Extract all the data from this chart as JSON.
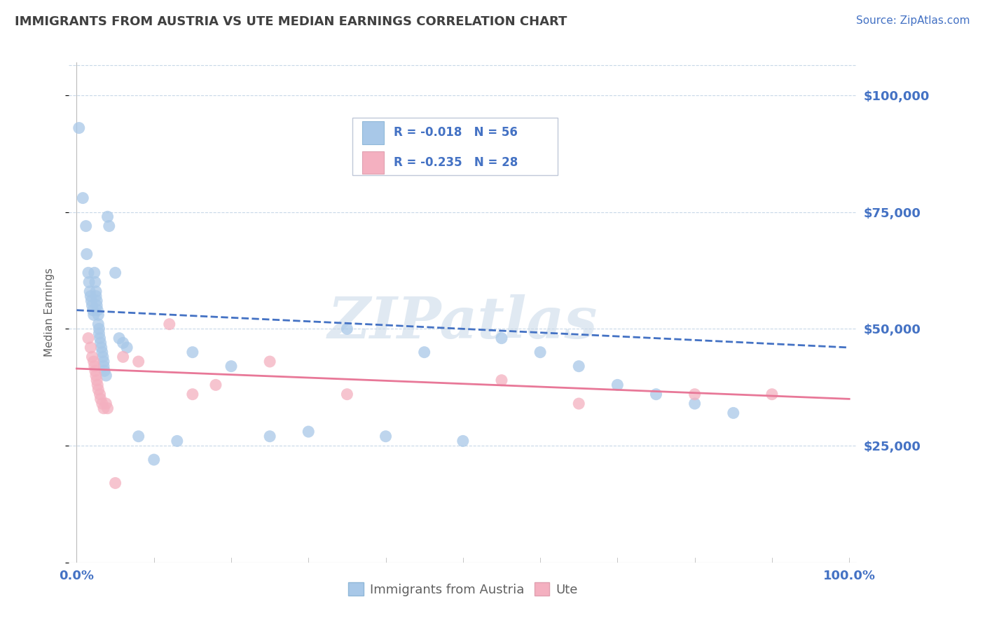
{
  "title": "IMMIGRANTS FROM AUSTRIA VS UTE MEDIAN EARNINGS CORRELATION CHART",
  "source_text": "Source: ZipAtlas.com",
  "ylabel": "Median Earnings",
  "watermark": "ZIPatlas",
  "yticks": [
    0,
    25000,
    50000,
    75000,
    100000
  ],
  "ytick_labels": [
    "",
    "$25,000",
    "$50,000",
    "$75,000",
    "$100,000"
  ],
  "ymin": 0,
  "ymax": 107000,
  "xmin": -0.01,
  "xmax": 1.01,
  "xtick_labels": [
    "0.0%",
    "100.0%"
  ],
  "xticks": [
    0.0,
    1.0
  ],
  "blue_scatter_x": [
    0.003,
    0.008,
    0.012,
    0.013,
    0.015,
    0.016,
    0.017,
    0.018,
    0.019,
    0.02,
    0.021,
    0.022,
    0.023,
    0.024,
    0.025,
    0.025,
    0.026,
    0.026,
    0.027,
    0.028,
    0.028,
    0.029,
    0.029,
    0.03,
    0.031,
    0.032,
    0.033,
    0.034,
    0.035,
    0.035,
    0.036,
    0.038,
    0.04,
    0.042,
    0.05,
    0.055,
    0.06,
    0.065,
    0.08,
    0.1,
    0.13,
    0.15,
    0.2,
    0.25,
    0.3,
    0.35,
    0.4,
    0.45,
    0.5,
    0.55,
    0.6,
    0.65,
    0.7,
    0.75,
    0.8,
    0.85
  ],
  "blue_scatter_y": [
    93000,
    78000,
    72000,
    66000,
    62000,
    60000,
    58000,
    57000,
    56000,
    55000,
    54000,
    53000,
    62000,
    60000,
    58000,
    57000,
    56000,
    55000,
    54000,
    53000,
    51000,
    50000,
    49000,
    48000,
    47000,
    46000,
    45000,
    44000,
    43000,
    42000,
    41000,
    40000,
    74000,
    72000,
    62000,
    48000,
    47000,
    46000,
    27000,
    22000,
    26000,
    45000,
    42000,
    27000,
    28000,
    50000,
    27000,
    45000,
    26000,
    48000,
    45000,
    42000,
    38000,
    36000,
    34000,
    32000
  ],
  "pink_scatter_x": [
    0.015,
    0.018,
    0.02,
    0.022,
    0.023,
    0.024,
    0.025,
    0.026,
    0.027,
    0.028,
    0.03,
    0.031,
    0.033,
    0.035,
    0.038,
    0.04,
    0.05,
    0.06,
    0.08,
    0.12,
    0.15,
    0.18,
    0.25,
    0.35,
    0.55,
    0.65,
    0.8,
    0.9
  ],
  "pink_scatter_y": [
    48000,
    46000,
    44000,
    43000,
    42000,
    41000,
    40000,
    39000,
    38000,
    37000,
    36000,
    35000,
    34000,
    33000,
    34000,
    33000,
    17000,
    44000,
    43000,
    51000,
    36000,
    38000,
    43000,
    36000,
    39000,
    34000,
    36000,
    36000
  ],
  "blue_line_x": [
    0.0,
    1.0
  ],
  "blue_line_y": [
    54000,
    46000
  ],
  "pink_line_x": [
    0.0,
    1.0
  ],
  "pink_line_y": [
    41500,
    35000
  ],
  "blue_color": "#4472c4",
  "pink_color": "#e87898",
  "blue_scatter_color": "#a8c8e8",
  "pink_scatter_color": "#f4b0c0",
  "axis_color": "#4472c4",
  "title_color": "#404040",
  "grid_color": "#c8d8e8",
  "background_color": "#ffffff",
  "legend_text_blue": "R = -0.018   N = 56",
  "legend_text_pink": "R = -0.235   N = 28",
  "legend_label_blue": "Immigrants from Austria",
  "legend_label_pink": "Ute"
}
